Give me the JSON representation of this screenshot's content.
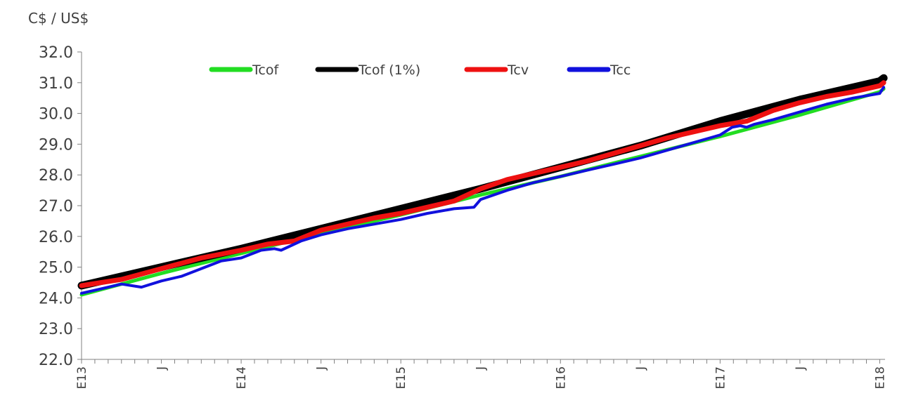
{
  "chart_data": {
    "type": "line",
    "unit_label": "C$ / US$",
    "ylim": [
      22.0,
      32.0
    ],
    "y_ticks": [
      "22.0",
      "23.0",
      "24.0",
      "25.0",
      "26.0",
      "27.0",
      "28.0",
      "29.0",
      "30.0",
      "31.0",
      "32.0"
    ],
    "x_tick_labels": [
      {
        "label": "E13",
        "month_index": 0
      },
      {
        "label": "J",
        "month_index": 6
      },
      {
        "label": "E14",
        "month_index": 12
      },
      {
        "label": "J",
        "month_index": 18
      },
      {
        "label": "E15",
        "month_index": 24
      },
      {
        "label": "J",
        "month_index": 30
      },
      {
        "label": "E16",
        "month_index": 36
      },
      {
        "label": "J",
        "month_index": 42
      },
      {
        "label": "E17",
        "month_index": 48
      },
      {
        "label": "J",
        "month_index": 54
      },
      {
        "label": "E18",
        "month_index": 60
      }
    ],
    "x_range_months": [
      0,
      60.4
    ],
    "legend_position": "top",
    "grid": false,
    "series": [
      {
        "name": "Tcof",
        "color": "#22dd22",
        "x": [
          0,
          6,
          12,
          18,
          24,
          30,
          36,
          42,
          48,
          54,
          60,
          60.3
        ],
        "values": [
          24.1,
          24.8,
          25.45,
          26.1,
          26.7,
          27.35,
          27.95,
          28.6,
          29.25,
          29.95,
          30.7,
          30.8
        ]
      },
      {
        "name": "Tcof (1%)",
        "color": "#000000",
        "x": [
          0,
          6,
          12,
          18,
          24,
          30,
          36,
          42,
          48,
          54,
          60,
          60.3
        ],
        "values": [
          24.4,
          25.0,
          25.6,
          26.25,
          26.9,
          27.55,
          28.25,
          28.95,
          29.75,
          30.45,
          31.05,
          31.15
        ]
      },
      {
        "name": "Tcv",
        "color": "#ee1111",
        "x": [
          0,
          3,
          6,
          9,
          12,
          14,
          16,
          18,
          20,
          22,
          24,
          26,
          28,
          30,
          32,
          34,
          36,
          38,
          40,
          42,
          44,
          46,
          48,
          50,
          52,
          54,
          56,
          58,
          60,
          60.3
        ],
        "values": [
          24.4,
          24.6,
          24.95,
          25.3,
          25.55,
          25.75,
          25.85,
          26.2,
          26.4,
          26.6,
          26.75,
          26.95,
          27.15,
          27.55,
          27.85,
          28.05,
          28.25,
          28.45,
          28.7,
          28.95,
          29.2,
          29.4,
          29.6,
          29.75,
          30.1,
          30.35,
          30.55,
          30.7,
          30.9,
          31.0
        ]
      },
      {
        "name": "Tcc",
        "color": "#1111dd",
        "x": [
          0,
          1.5,
          3,
          4.5,
          6,
          7.5,
          9,
          10.5,
          12,
          13.5,
          14.5,
          15,
          16.5,
          18,
          20,
          22,
          24,
          26,
          28,
          29.5,
          30,
          32,
          34,
          36,
          38,
          40,
          42,
          44,
          46,
          48,
          48.9,
          49.5,
          50,
          50.6,
          52,
          54,
          56,
          58,
          60,
          60.3
        ],
        "values": [
          24.15,
          24.3,
          24.45,
          24.35,
          24.55,
          24.7,
          24.95,
          25.2,
          25.3,
          25.55,
          25.6,
          25.55,
          25.85,
          26.05,
          26.25,
          26.4,
          26.55,
          26.75,
          26.9,
          26.95,
          27.2,
          27.5,
          27.75,
          27.95,
          28.15,
          28.35,
          28.55,
          28.8,
          29.05,
          29.3,
          29.55,
          29.6,
          29.55,
          29.65,
          29.8,
          30.05,
          30.3,
          30.5,
          30.65,
          30.85
        ]
      }
    ]
  }
}
